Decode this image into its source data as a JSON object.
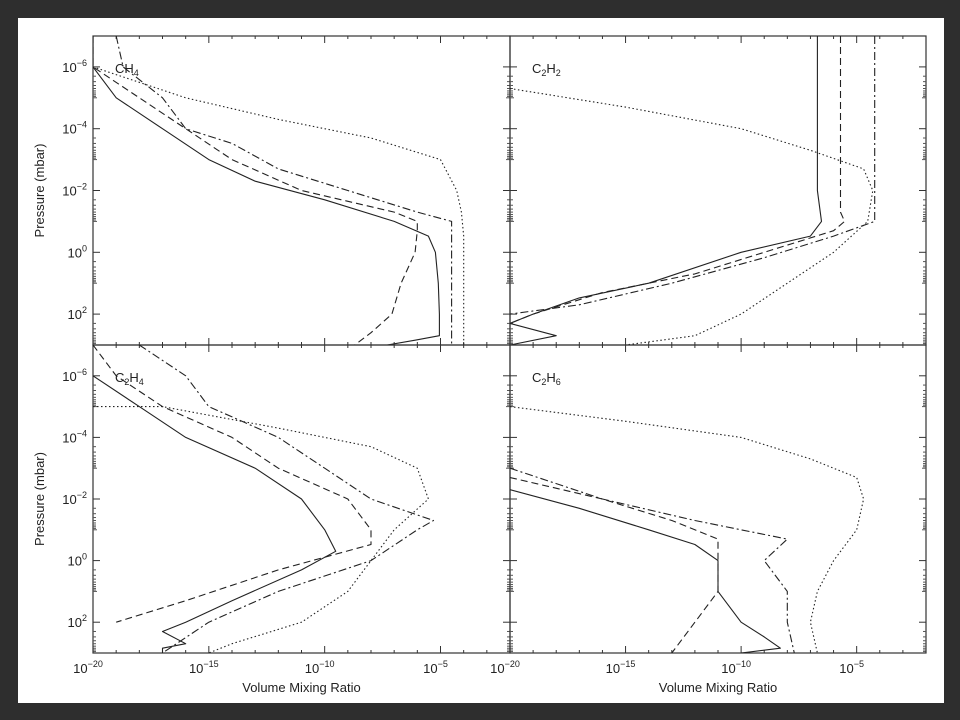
{
  "figure": {
    "ylabel": "Pressure  (mbar)",
    "xlabel": "Volume Mixing Ratio",
    "y_ticks": [
      {
        "base": "10",
        "exp": "−6",
        "value": 1e-06
      },
      {
        "base": "10",
        "exp": "−4",
        "value": 0.0001
      },
      {
        "base": "10",
        "exp": "−2",
        "value": 0.01
      },
      {
        "base": "10",
        "exp": "0",
        "value": 1
      },
      {
        "base": "10",
        "exp": "2",
        "value": 100
      }
    ],
    "x_ticks": [
      {
        "base": "10",
        "exp": "−20",
        "value": 1e-20
      },
      {
        "base": "10",
        "exp": "−15",
        "value": 1e-15
      },
      {
        "base": "10",
        "exp": "−10",
        "value": 1e-10
      },
      {
        "base": "10",
        "exp": "−5",
        "value": 1e-05
      }
    ],
    "right_x_ticks": [
      {
        "base": "10",
        "exp": "−20",
        "value": 1e-20
      },
      {
        "base": "10",
        "exp": "−15",
        "value": 1e-15
      },
      {
        "base": "10",
        "exp": "−10",
        "value": 1e-10
      },
      {
        "base": "10",
        "exp": "−5",
        "value": 1e-05
      }
    ]
  },
  "chart_data": [
    {
      "type": "line",
      "panel": "CH4",
      "label": {
        "main": "CH",
        "sub": "4"
      },
      "x_scale": "log",
      "y_scale": "log",
      "y_inverted": true,
      "xlim": [
        1e-20,
        0.01
      ],
      "ylim": [
        1000,
        1e-07
      ],
      "series": [
        {
          "style": "solid",
          "points": [
            [
              1e-20,
              1e-07
            ],
            [
              1e-20,
              1e-06
            ],
            [
              1e-19,
              1e-05
            ],
            [
              1e-17,
              0.0001
            ],
            [
              1e-15,
              0.001
            ],
            [
              1e-13,
              0.005
            ],
            [
              1e-10,
              0.02
            ],
            [
              1e-07,
              0.1
            ],
            [
              3e-06,
              0.3
            ],
            [
              6e-06,
              1
            ],
            [
              8e-06,
              10
            ],
            [
              9e-06,
              100
            ],
            [
              9e-06,
              500
            ],
            [
              8e-07,
              700
            ],
            [
              5e-08,
              1000
            ]
          ]
        },
        {
          "style": "dashed",
          "points": [
            [
              1e-20,
              1e-07
            ],
            [
              1e-20,
              1e-06
            ],
            [
              1e-18,
              1e-05
            ],
            [
              1e-16,
              0.0001
            ],
            [
              1e-14,
              0.001
            ],
            [
              1e-11,
              0.01
            ],
            [
              1e-07,
              0.05
            ],
            [
              1e-06,
              0.1
            ],
            [
              1e-06,
              0.2
            ],
            [
              8e-07,
              1
            ],
            [
              2e-07,
              10
            ],
            [
              8e-08,
              100
            ],
            [
              1e-08,
              400
            ],
            [
              2e-09,
              1000
            ]
          ]
        },
        {
          "style": "dashdot",
          "points": [
            [
              1e-19,
              1e-07
            ],
            [
              2e-19,
              1e-06
            ],
            [
              1e-17,
              1e-05
            ],
            [
              1e-16,
              0.0001
            ],
            [
              1e-14,
              0.0003
            ],
            [
              1e-12,
              0.002
            ],
            [
              1e-09,
              0.01
            ],
            [
              1e-06,
              0.05
            ],
            [
              3e-05,
              0.1
            ],
            [
              3e-05,
              1
            ],
            [
              3e-05,
              1000
            ]
          ]
        },
        {
          "style": "dotted",
          "points": [
            [
              1e-20,
              1e-06
            ],
            [
              1e-16,
              1e-05
            ],
            [
              1e-12,
              5e-05
            ],
            [
              1e-08,
              0.0002
            ],
            [
              1e-05,
              0.001
            ],
            [
              5e-05,
              0.01
            ],
            [
              8e-05,
              0.05
            ],
            [
              0.0001,
              0.3
            ],
            [
              0.0001,
              1000
            ]
          ]
        }
      ]
    },
    {
      "type": "line",
      "panel": "C2H2",
      "label": {
        "main": "C",
        "sub1": "2",
        "main2": "H",
        "sub2": "2"
      },
      "x_scale": "log",
      "y_scale": "log",
      "y_inverted": true,
      "xlim": [
        1e-20,
        0.01
      ],
      "ylim": [
        1000,
        1e-07
      ],
      "series": [
        {
          "style": "solid",
          "points": [
            [
              2e-07,
              1e-07
            ],
            [
              2e-07,
              0.01
            ],
            [
              3e-07,
              0.1
            ],
            [
              1e-07,
              0.3
            ],
            [
              1e-10,
              1
            ],
            [
              1e-14,
              10
            ],
            [
              1e-17,
              30
            ],
            [
              1e-19,
              100
            ],
            [
              1e-20,
              200
            ],
            [
              1e-18,
              500
            ],
            [
              1e-20,
              1000
            ]
          ]
        },
        {
          "style": "dashed",
          "points": [
            [
              2e-06,
              1e-07
            ],
            [
              2e-06,
              0.05
            ],
            [
              3e-06,
              0.1
            ],
            [
              1e-06,
              0.2
            ],
            [
              1e-09,
              1
            ],
            [
              1e-12,
              5
            ],
            [
              1e-16,
              20
            ],
            [
              1e-19,
              100
            ],
            [
              1e-20,
              200
            ]
          ]
        },
        {
          "style": "dashdot",
          "points": [
            [
              6e-05,
              1e-07
            ],
            [
              6e-05,
              0.05
            ],
            [
              6e-05,
              0.1
            ],
            [
              1e-06,
              0.3
            ],
            [
              1e-09,
              1.5
            ],
            [
              1e-13,
              10
            ],
            [
              1e-17,
              50
            ],
            [
              1e-20,
              100
            ]
          ]
        },
        {
          "style": "dotted",
          "points": [
            [
              1e-20,
              5e-06
            ],
            [
              1e-15,
              2e-05
            ],
            [
              1e-10,
              0.0001
            ],
            [
              1e-07,
              0.0005
            ],
            [
              2e-05,
              0.002
            ],
            [
              5e-05,
              0.01
            ],
            [
              3e-05,
              0.1
            ],
            [
              1e-06,
              1
            ],
            [
              1e-08,
              10
            ],
            [
              1e-10,
              100
            ],
            [
              1e-12,
              500
            ],
            [
              1e-15,
              1000
            ]
          ]
        }
      ]
    },
    {
      "type": "line",
      "panel": "C2H4",
      "label": {
        "main": "C",
        "sub1": "2",
        "main2": "H",
        "sub2": "4"
      },
      "x_scale": "log",
      "y_scale": "log",
      "y_inverted": true,
      "xlim": [
        1e-20,
        0.01
      ],
      "ylim": [
        1000,
        1e-07
      ],
      "series": [
        {
          "style": "solid",
          "points": [
            [
              1e-20,
              1e-06
            ],
            [
              1e-18,
              1e-05
            ],
            [
              1e-16,
              0.0001
            ],
            [
              1e-13,
              0.001
            ],
            [
              1e-11,
              0.01
            ],
            [
              1e-10,
              0.1
            ],
            [
              3e-10,
              0.5
            ],
            [
              1e-11,
              2
            ],
            [
              1e-14,
              20
            ],
            [
              1e-16,
              100
            ],
            [
              1e-17,
              200
            ],
            [
              1e-16,
              500
            ],
            [
              1e-17,
              700
            ],
            [
              1e-17,
              1000
            ]
          ]
        },
        {
          "style": "dashed",
          "points": [
            [
              1e-20,
              1e-07
            ],
            [
              1e-19,
              1e-06
            ],
            [
              1e-17,
              1e-05
            ],
            [
              1e-14,
              0.0001
            ],
            [
              1e-12,
              0.001
            ],
            [
              1e-09,
              0.01
            ],
            [
              1e-08,
              0.1
            ],
            [
              1e-08,
              0.3
            ],
            [
              1e-12,
              2
            ],
            [
              1e-16,
              20
            ],
            [
              1e-19,
              100
            ]
          ]
        },
        {
          "style": "dashdot",
          "points": [
            [
              1e-18,
              1e-07
            ],
            [
              1e-16,
              1e-06
            ],
            [
              1e-15,
              1e-05
            ],
            [
              1e-12,
              0.0001
            ],
            [
              1e-10,
              0.001
            ],
            [
              1e-08,
              0.01
            ],
            [
              5e-06,
              0.05
            ],
            [
              1e-06,
              0.1
            ],
            [
              1e-08,
              1
            ],
            [
              1e-12,
              10
            ],
            [
              1e-15,
              100
            ],
            [
              1e-17,
              1000
            ]
          ]
        },
        {
          "style": "dotted",
          "points": [
            [
              1e-20,
              1e-05
            ],
            [
              1e-17,
              1e-05
            ],
            [
              1e-12,
              5e-05
            ],
            [
              1e-08,
              0.0002
            ],
            [
              1e-06,
              0.001
            ],
            [
              3e-06,
              0.01
            ],
            [
              1e-07,
              0.1
            ],
            [
              1e-08,
              1
            ],
            [
              1e-09,
              10
            ],
            [
              1e-11,
              100
            ],
            [
              1e-14,
              500
            ],
            [
              1e-15,
              1000
            ]
          ]
        }
      ]
    },
    {
      "type": "line",
      "panel": "C2H6",
      "label": {
        "main": "C",
        "sub1": "2",
        "main2": "H",
        "sub2": "6"
      },
      "x_scale": "log",
      "y_scale": "log",
      "y_inverted": true,
      "xlim": [
        1e-20,
        0.01
      ],
      "ylim": [
        1000,
        1e-07
      ],
      "series": [
        {
          "style": "solid",
          "points": [
            [
              1e-20,
              0.005
            ],
            [
              1e-17,
              0.02
            ],
            [
              1e-14,
              0.1
            ],
            [
              1e-12,
              0.3
            ],
            [
              1e-11,
              1
            ],
            [
              1e-11,
              10
            ],
            [
              1e-10,
              100
            ],
            [
              1e-09,
              300
            ],
            [
              5e-09,
              700
            ],
            [
              1e-10,
              1000
            ]
          ]
        },
        {
          "style": "dashed",
          "points": [
            [
              1e-20,
              0.002
            ],
            [
              1e-16,
              0.01
            ],
            [
              1e-13,
              0.05
            ],
            [
              1e-11,
              0.2
            ],
            [
              1e-11,
              1
            ],
            [
              1e-11,
              10
            ],
            [
              1e-12,
              100
            ],
            [
              1e-13,
              1000
            ]
          ]
        },
        {
          "style": "dashdot",
          "points": [
            [
              1e-20,
              0.001
            ],
            [
              1e-16,
              0.01
            ],
            [
              1e-12,
              0.05
            ],
            [
              1e-08,
              0.2
            ],
            [
              1e-09,
              1
            ],
            [
              1e-08,
              10
            ],
            [
              1e-08,
              100
            ],
            [
              2e-08,
              1000
            ]
          ]
        },
        {
          "style": "dotted",
          "points": [
            [
              1e-20,
              1e-05
            ],
            [
              1e-15,
              3e-05
            ],
            [
              1e-10,
              0.0001
            ],
            [
              1e-07,
              0.0005
            ],
            [
              1e-05,
              0.002
            ],
            [
              2e-05,
              0.01
            ],
            [
              1e-05,
              0.1
            ],
            [
              1e-06,
              1
            ],
            [
              2e-07,
              10
            ],
            [
              1e-07,
              100
            ],
            [
              2e-07,
              1000
            ]
          ]
        }
      ]
    }
  ]
}
